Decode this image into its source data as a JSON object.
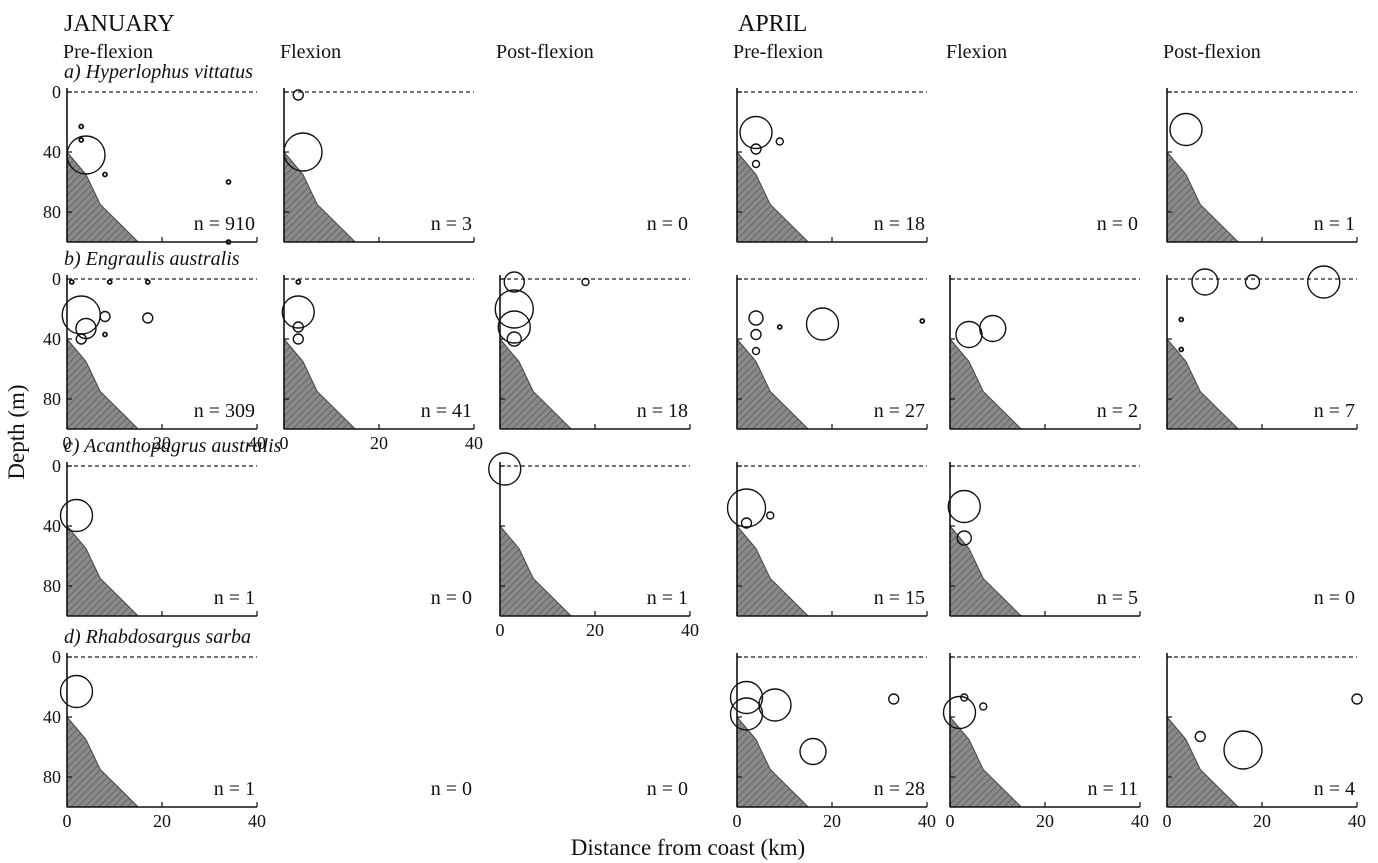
{
  "chart_data": {
    "type": "scatter",
    "months": [
      "JANUARY",
      "APRIL"
    ],
    "stages": [
      "Pre-flexion",
      "Flexion",
      "Post-flexion"
    ],
    "xlabel": "Distance from coast (km)",
    "ylabel": "Depth (m)",
    "xlim": [
      0,
      40
    ],
    "ylim": [
      0,
      100
    ],
    "x_ticks": [
      0,
      20,
      40
    ],
    "y_ticks": [
      0,
      40,
      80
    ],
    "bubble_size": "relative abundance",
    "panels": [
      {
        "species": "a) Hyperlophus vittatus",
        "month": "JANUARY",
        "stage": "Pre-flexion",
        "n": "n = 910",
        "points": [
          {
            "x": 4,
            "y": 42,
            "size": 8
          },
          {
            "x": 3,
            "y": 23,
            "size": 1
          },
          {
            "x": 3,
            "y": 32,
            "size": 1
          },
          {
            "x": 8,
            "y": 55,
            "size": 1
          },
          {
            "x": 34,
            "y": 60,
            "size": 1
          },
          {
            "x": 34,
            "y": 100,
            "size": 1
          }
        ]
      },
      {
        "species": "a) Hyperlophus vittatus",
        "month": "JANUARY",
        "stage": "Flexion",
        "n": "n = 3",
        "points": [
          {
            "x": 3,
            "y": 2,
            "size": 3
          },
          {
            "x": 4,
            "y": 40,
            "size": 8
          }
        ]
      },
      {
        "species": "a) Hyperlophus vittatus",
        "month": "JANUARY",
        "stage": "Post-flexion",
        "n": "n = 0",
        "points": []
      },
      {
        "species": "a) Hyperlophus vittatus",
        "month": "APRIL",
        "stage": "Pre-flexion",
        "n": "n = 18",
        "points": [
          {
            "x": 4,
            "y": 27,
            "size": 7
          },
          {
            "x": 4,
            "y": 38,
            "size": 3
          },
          {
            "x": 9,
            "y": 33,
            "size": 2
          },
          {
            "x": 4,
            "y": 48,
            "size": 2
          }
        ]
      },
      {
        "species": "a) Hyperlophus vittatus",
        "month": "APRIL",
        "stage": "Flexion",
        "n": "n = 0",
        "points": []
      },
      {
        "species": "a) Hyperlophus vittatus",
        "month": "APRIL",
        "stage": "Post-flexion",
        "n": "n = 1",
        "points": [
          {
            "x": 4,
            "y": 25,
            "size": 7
          }
        ]
      },
      {
        "species": "b) Engraulis australis",
        "month": "JANUARY",
        "stage": "Pre-flexion",
        "n": "n = 309",
        "points": [
          {
            "x": 3,
            "y": 24,
            "size": 8
          },
          {
            "x": 4,
            "y": 33,
            "size": 5
          },
          {
            "x": 3,
            "y": 40,
            "size": 3
          },
          {
            "x": 8,
            "y": 25,
            "size": 3
          },
          {
            "x": 17,
            "y": 26,
            "size": 3
          },
          {
            "x": 1,
            "y": 2,
            "size": 1
          },
          {
            "x": 9,
            "y": 2,
            "size": 1
          },
          {
            "x": 17,
            "y": 2,
            "size": 1
          },
          {
            "x": 8,
            "y": 37,
            "size": 1
          }
        ]
      },
      {
        "species": "b) Engraulis australis",
        "month": "JANUARY",
        "stage": "Flexion",
        "n": "n = 41",
        "points": [
          {
            "x": 3,
            "y": 22,
            "size": 7
          },
          {
            "x": 3,
            "y": 32,
            "size": 3
          },
          {
            "x": 3,
            "y": 40,
            "size": 3
          },
          {
            "x": 3,
            "y": 2,
            "size": 1
          }
        ]
      },
      {
        "species": "b) Engraulis australis",
        "month": "JANUARY",
        "stage": "Post-flexion",
        "n": "n = 18",
        "points": [
          {
            "x": 3,
            "y": 2,
            "size": 5
          },
          {
            "x": 3,
            "y": 20,
            "size": 8
          },
          {
            "x": 3,
            "y": 32,
            "size": 7
          },
          {
            "x": 3,
            "y": 40,
            "size": 4
          },
          {
            "x": 18,
            "y": 2,
            "size": 2
          }
        ]
      },
      {
        "species": "b) Engraulis australis",
        "month": "APRIL",
        "stage": "Pre-flexion",
        "n": "n = 27",
        "points": [
          {
            "x": 4,
            "y": 26,
            "size": 4
          },
          {
            "x": 4,
            "y": 37,
            "size": 3
          },
          {
            "x": 4,
            "y": 48,
            "size": 2
          },
          {
            "x": 9,
            "y": 32,
            "size": 1
          },
          {
            "x": 18,
            "y": 30,
            "size": 7
          },
          {
            "x": 39,
            "y": 28,
            "size": 1
          }
        ]
      },
      {
        "species": "b) Engraulis australis",
        "month": "APRIL",
        "stage": "Flexion",
        "n": "n = 2",
        "points": [
          {
            "x": 4,
            "y": 37,
            "size": 6
          },
          {
            "x": 9,
            "y": 33,
            "size": 6
          }
        ]
      },
      {
        "species": "b) Engraulis australis",
        "month": "APRIL",
        "stage": "Post-flexion",
        "n": "n = 7",
        "points": [
          {
            "x": 8,
            "y": 2,
            "size": 6
          },
          {
            "x": 18,
            "y": 2,
            "size": 4
          },
          {
            "x": 33,
            "y": 2,
            "size": 7
          },
          {
            "x": 3,
            "y": 27,
            "size": 1
          },
          {
            "x": 3,
            "y": 47,
            "size": 1
          }
        ]
      },
      {
        "species": "c) Acanthopagrus australis",
        "month": "JANUARY",
        "stage": "Pre-flexion",
        "n": "n = 1",
        "points": [
          {
            "x": 2,
            "y": 33,
            "size": 7
          }
        ]
      },
      {
        "species": "c) Acanthopagrus australis",
        "month": "JANUARY",
        "stage": "Flexion",
        "n": "n = 0",
        "points": []
      },
      {
        "species": "c) Acanthopagrus australis",
        "month": "JANUARY",
        "stage": "Post-flexion",
        "n": "n = 1",
        "points": [
          {
            "x": 1,
            "y": 2,
            "size": 7
          }
        ]
      },
      {
        "species": "c) Acanthopagrus australis",
        "month": "APRIL",
        "stage": "Pre-flexion",
        "n": "n = 15",
        "points": [
          {
            "x": 2,
            "y": 28,
            "size": 8
          },
          {
            "x": 2,
            "y": 38,
            "size": 3
          },
          {
            "x": 7,
            "y": 33,
            "size": 2
          }
        ]
      },
      {
        "species": "c) Acanthopagrus australis",
        "month": "APRIL",
        "stage": "Flexion",
        "n": "n = 5",
        "points": [
          {
            "x": 3,
            "y": 27,
            "size": 7
          },
          {
            "x": 3,
            "y": 48,
            "size": 4
          }
        ]
      },
      {
        "species": "c) Acanthopagrus australis",
        "month": "APRIL",
        "stage": "Post-flexion",
        "n": "n = 0",
        "points": []
      },
      {
        "species": "d) Rhabdosargus sarba",
        "month": "JANUARY",
        "stage": "Pre-flexion",
        "n": "n = 1",
        "points": [
          {
            "x": 2,
            "y": 23,
            "size": 7
          }
        ]
      },
      {
        "species": "d) Rhabdosargus sarba",
        "month": "JANUARY",
        "stage": "Flexion",
        "n": "n = 0",
        "points": []
      },
      {
        "species": "d) Rhabdosargus sarba",
        "month": "JANUARY",
        "stage": "Post-flexion",
        "n": "n = 0",
        "points": []
      },
      {
        "species": "d) Rhabdosargus sarba",
        "month": "APRIL",
        "stage": "Pre-flexion",
        "n": "n = 28",
        "points": [
          {
            "x": 2,
            "y": 27,
            "size": 7
          },
          {
            "x": 2,
            "y": 38,
            "size": 7
          },
          {
            "x": 8,
            "y": 32,
            "size": 7
          },
          {
            "x": 16,
            "y": 63,
            "size": 6
          },
          {
            "x": 33,
            "y": 28,
            "size": 3
          }
        ]
      },
      {
        "species": "d) Rhabdosargus sarba",
        "month": "APRIL",
        "stage": "Flexion",
        "n": "n = 11",
        "points": [
          {
            "x": 2,
            "y": 37,
            "size": 7
          },
          {
            "x": 3,
            "y": 27,
            "size": 2
          },
          {
            "x": 7,
            "y": 33,
            "size": 2
          }
        ]
      },
      {
        "species": "d) Rhabdosargus sarba",
        "month": "APRIL",
        "stage": "Post-flexion",
        "n": "n = 4",
        "points": [
          {
            "x": 7,
            "y": 53,
            "size": 3
          },
          {
            "x": 16,
            "y": 62,
            "size": 8
          },
          {
            "x": 40,
            "y": 28,
            "size": 3
          }
        ]
      }
    ]
  }
}
